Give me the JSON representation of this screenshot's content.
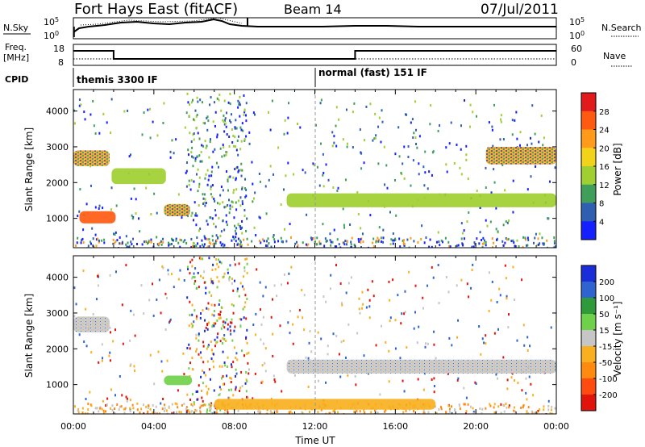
{
  "header": {
    "station": "Fort Hays East (fitACF)",
    "beam": "Beam 14",
    "date": "07/Jul/2011"
  },
  "top_panels": {
    "noise": {
      "left_label": "N.Sky",
      "right_label": "N.Search",
      "left_ticks": [
        "10^5",
        "10^0"
      ],
      "right_ticks": [
        "10^5",
        "10^0"
      ]
    },
    "freq": {
      "left_label_line1": "Freq.",
      "left_label_line2": "[MHz]",
      "right_label": "Nave",
      "left_ticks": [
        "18",
        "8"
      ],
      "right_ticks": [
        "60",
        "0"
      ],
      "freq_steps": [
        {
          "start_h": 0.0,
          "end_h": 2.0,
          "level": "high"
        },
        {
          "start_h": 2.0,
          "end_h": 14.0,
          "level": "low"
        },
        {
          "start_h": 14.0,
          "end_h": 24.0,
          "level": "high"
        }
      ]
    },
    "cpid": {
      "label": "CPID",
      "modes": [
        {
          "name": "themis 3300 IF",
          "start_h": 0.0
        },
        {
          "name": "normal (fast) 151 IF",
          "start_h": 12.0
        }
      ]
    }
  },
  "chart_data": [
    {
      "type": "heatmap",
      "name": "power",
      "ylabel": "Slant Range [km]",
      "xlim_hours": [
        0,
        24
      ],
      "ylim": [
        180,
        4600
      ],
      "y_ticks": [
        1000,
        2000,
        3000,
        4000
      ],
      "colorbar": {
        "label": "Power [dB]",
        "ticks": [
          "28",
          "24",
          "20",
          "16",
          "12",
          "8",
          "4"
        ],
        "colors": [
          "#e31a1c",
          "#ff5a12",
          "#ff9a1a",
          "#f3d21a",
          "#9fcf30",
          "#3f9f5a",
          "#2f5fb0",
          "#1420ff"
        ]
      },
      "features": [
        {
          "t0": 0.0,
          "t1": 1.8,
          "r0": 2200,
          "r1": 2900,
          "power": 20
        },
        {
          "t0": 0.3,
          "t1": 2.1,
          "r0": 700,
          "r1": 1200,
          "power": 26
        },
        {
          "t0": 1.9,
          "t1": 4.6,
          "r0": 1700,
          "r1": 2400,
          "power": 16
        },
        {
          "t0": 4.5,
          "t1": 5.8,
          "r0": 900,
          "r1": 1400,
          "power": 22
        },
        {
          "t0": 10.6,
          "t1": 24.0,
          "r0": 1100,
          "r1": 1700,
          "power": 18
        },
        {
          "t0": 20.5,
          "t1": 24.0,
          "r0": 2200,
          "r1": 3000,
          "power": 22
        }
      ]
    },
    {
      "type": "heatmap",
      "name": "velocity",
      "ylabel": "Slant Range [km]",
      "xlabel": "Time UT",
      "xlim_hours": [
        0,
        24
      ],
      "ylim": [
        180,
        4600
      ],
      "y_ticks": [
        1000,
        2000,
        3000,
        4000
      ],
      "x_ticks": [
        "00:00",
        "04:00",
        "08:00",
        "12:00",
        "16:00",
        "20:00",
        "00:00"
      ],
      "colorbar": {
        "label": "Velocity [m s⁻¹]",
        "ticks": [
          "200",
          "100",
          "50",
          "15",
          "-15",
          "-50",
          "-100",
          "-200"
        ],
        "colors": [
          "#1a2dd8",
          "#2f63d0",
          "#2f9a3a",
          "#6fd14a",
          "#c6c6c6",
          "#f9b020",
          "#ff8a10",
          "#ff4a10",
          "#e0140a"
        ]
      },
      "features": [
        {
          "t0": 0.0,
          "t1": 1.8,
          "r0": 2200,
          "r1": 2900,
          "velocity": 0
        },
        {
          "t0": 4.5,
          "t1": 5.9,
          "r0": 900,
          "r1": 1250,
          "velocity": 40
        },
        {
          "t0": 10.6,
          "t1": 24.0,
          "r0": 1100,
          "r1": 1700,
          "velocity": 0
        },
        {
          "t0": 7.0,
          "t1": 18.0,
          "r0": 180,
          "r1": 600,
          "velocity": -60
        }
      ]
    }
  ]
}
